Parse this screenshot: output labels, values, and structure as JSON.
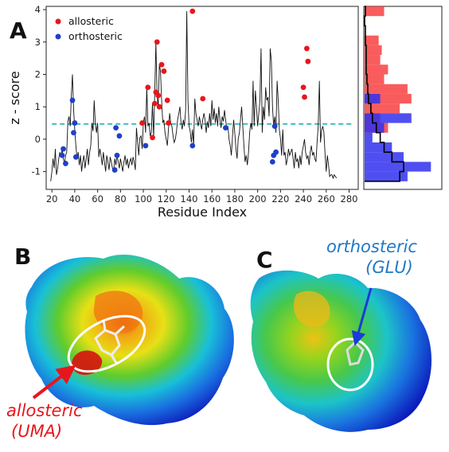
{
  "panels": {
    "a": "A",
    "b": "B",
    "c": "C"
  },
  "chart_data": {
    "type": "line",
    "xlabel": "Residue Index",
    "ylabel": "z - score",
    "xlim": [
      15,
      288
    ],
    "ylim": [
      -1.55,
      4.1
    ],
    "xticks": [
      20,
      40,
      60,
      80,
      100,
      120,
      140,
      160,
      180,
      200,
      220,
      240,
      260,
      280
    ],
    "yticks": [
      -1,
      0,
      1,
      2,
      3,
      4
    ],
    "threshold": 0.47,
    "line_x": [
      19,
      20,
      21,
      22,
      23,
      24,
      25,
      26,
      27,
      28,
      29,
      30,
      31,
      32,
      33,
      34,
      35,
      36,
      37,
      38,
      39,
      40,
      41,
      42,
      43,
      44,
      45,
      46,
      47,
      48,
      49,
      50,
      51,
      52,
      53,
      54,
      55,
      56,
      57,
      58,
      59,
      60,
      61,
      62,
      63,
      64,
      65,
      66,
      67,
      68,
      69,
      70,
      71,
      72,
      73,
      74,
      75,
      76,
      77,
      78,
      79,
      80,
      81,
      82,
      83,
      84,
      85,
      86,
      87,
      88,
      89,
      90,
      91,
      92,
      93,
      94,
      95,
      96,
      97,
      98,
      99,
      100,
      101,
      102,
      103,
      104,
      105,
      106,
      107,
      108,
      109,
      110,
      111,
      112,
      113,
      114,
      115,
      116,
      117,
      118,
      119,
      120,
      121,
      122,
      123,
      124,
      125,
      126,
      127,
      128,
      129,
      130,
      131,
      132,
      133,
      134,
      135,
      136,
      137,
      138,
      139,
      140,
      141,
      142,
      143,
      144,
      145,
      146,
      147,
      148,
      149,
      150,
      151,
      152,
      153,
      154,
      155,
      156,
      157,
      158,
      159,
      160,
      161,
      162,
      163,
      164,
      165,
      166,
      167,
      168,
      169,
      170,
      171,
      172,
      173,
      174,
      175,
      176,
      177,
      178,
      179,
      180,
      181,
      182,
      183,
      184,
      185,
      186,
      187,
      188,
      189,
      190,
      191,
      192,
      193,
      194,
      195,
      196,
      197,
      198,
      199,
      200,
      201,
      202,
      203,
      204,
      205,
      206,
      207,
      208,
      209,
      210,
      211,
      212,
      213,
      214,
      215,
      216,
      217,
      218,
      219,
      220,
      221,
      222,
      223,
      224,
      225,
      226,
      227,
      228,
      229,
      230,
      231,
      232,
      233,
      234,
      235,
      236,
      237,
      238,
      239,
      240,
      241,
      242,
      243,
      244,
      245,
      246,
      247,
      248,
      249,
      250,
      251,
      252,
      253,
      254,
      255,
      256,
      257,
      258,
      259,
      260,
      261,
      262,
      263,
      264,
      265,
      266,
      267,
      268,
      269,
      270,
      271,
      272,
      273,
      274,
      275,
      276,
      277,
      278,
      279,
      280,
      281,
      282,
      283,
      284,
      285
    ],
    "line_y": [
      -1.3,
      -1.0,
      -0.6,
      -0.9,
      -0.3,
      -1.1,
      -0.9,
      -0.6,
      -0.4,
      -0.55,
      -0.3,
      -0.6,
      -0.75,
      -0.5,
      -0.4,
      0.55,
      0.7,
      0.4,
      1.35,
      2.0,
      0.9,
      0.3,
      -0.2,
      -0.6,
      -0.4,
      -0.8,
      -0.5,
      -1.0,
      -0.7,
      -0.5,
      -0.9,
      -0.6,
      -0.3,
      -0.8,
      -0.4,
      -0.2,
      0.5,
      0.25,
      1.2,
      0.5,
      0.2,
      0.5,
      -0.55,
      -0.3,
      -0.5,
      -0.8,
      -0.4,
      -0.7,
      -1.0,
      -0.5,
      -0.7,
      -0.95,
      -0.55,
      -0.7,
      -0.9,
      -1.0,
      -0.6,
      -0.8,
      -0.5,
      -0.7,
      -0.9,
      -0.6,
      -0.8,
      -1.0,
      -0.7,
      -0.5,
      -0.8,
      -0.6,
      -0.9,
      -0.7,
      -0.6,
      -0.8,
      -0.55,
      -0.7,
      -0.95,
      0.35,
      -0.1,
      -0.5,
      0.05,
      0.1,
      -0.3,
      0.5,
      0.7,
      0.2,
      1.6,
      0.4,
      0.5,
      0.1,
      0.2,
      1.1,
      0.05,
      1.45,
      3.0,
      1.35,
      1.0,
      2.3,
      2.1,
      1.2,
      0.5,
      0.6,
      0.2,
      0.0,
      -0.2,
      0.3,
      0.8,
      0.5,
      0.4,
      0.1,
      -0.1,
      0.0,
      0.25,
      0.6,
      0.8,
      1.0,
      0.5,
      0.3,
      0.6,
      0.4,
      0.9,
      3.95,
      1.2,
      0.4,
      0.25,
      -0.1,
      0.3,
      -0.2,
      1.25,
      0.8,
      0.6,
      0.4,
      0.7,
      0.5,
      0.3,
      0.6,
      0.8,
      0.6,
      0.2,
      0.55,
      0.35,
      0.8,
      0.4,
      1.2,
      0.6,
      0.95,
      0.5,
      0.8,
      0.4,
      1.0,
      0.6,
      0.35,
      0.7,
      0.55,
      0.9,
      0.6,
      0.3,
      0.4,
      0.0,
      -0.2,
      -0.5,
      0.1,
      0.6,
      0.2,
      -0.3,
      -0.6,
      0.0,
      0.2,
      0.6,
      1.0,
      0.4,
      -0.2,
      -0.7,
      -0.5,
      -0.8,
      -0.4,
      0.2,
      0.5,
      0.3,
      1.8,
      0.4,
      1.5,
      1.0,
      0.4,
      0.8,
      1.2,
      2.8,
      0.2,
      1.0,
      0.6,
      1.6,
      1.2,
      1.3,
      0.7,
      2.8,
      2.4,
      1.0,
      0.4,
      0.7,
      0.2,
      1.8,
      1.2,
      0.3,
      0.0,
      -0.5,
      0.3,
      -0.5,
      -0.4,
      -0.8,
      -0.6,
      -0.3,
      -0.5,
      -0.4,
      -0.3,
      -0.6,
      -0.9,
      -0.4,
      -0.7,
      -0.6,
      -0.9,
      -0.5,
      -0.8,
      -0.4,
      -0.2,
      0.0,
      -0.4,
      -0.6,
      -0.5,
      -0.8,
      -0.4,
      -0.2,
      -0.5,
      -0.4,
      -0.6,
      -0.7,
      -0.1,
      0.4,
      1.8,
      -0.1,
      0.3,
      0.4,
      0.2,
      -0.5,
      -1.0,
      -0.5,
      -0.8,
      -1.15,
      -1.1,
      -1.1,
      -1.2,
      -1.1,
      -1.15,
      -1.2
    ],
    "series": [
      {
        "name": "allosteric",
        "color": "#e8161c",
        "x": [
          99,
          104,
          108,
          110,
          111,
          112,
          113,
          114,
          116,
          118,
          121,
          122,
          143,
          152,
          240,
          241,
          243,
          244
        ],
        "y": [
          0.5,
          1.6,
          0.05,
          1.1,
          1.45,
          3.0,
          1.35,
          1.0,
          2.3,
          2.1,
          1.2,
          0.5,
          3.95,
          1.25,
          1.6,
          1.3,
          2.8,
          2.4
        ]
      },
      {
        "name": "orthosteric",
        "color": "#1f3fcc",
        "x": [
          29,
          30,
          32,
          38,
          39,
          40,
          41,
          75,
          76,
          77,
          79,
          102,
          143,
          172,
          213,
          214,
          215,
          216
        ],
        "y": [
          -0.5,
          -0.3,
          -0.75,
          1.2,
          0.2,
          0.5,
          -0.55,
          -0.95,
          0.35,
          -0.5,
          0.1,
          -0.2,
          -0.2,
          0.35,
          -0.7,
          -0.5,
          0.4,
          -0.4
        ]
      }
    ],
    "side_hist": {
      "bins": [
        -1.3,
        -1.0,
        -0.7,
        -0.4,
        -0.1,
        0.2,
        0.5,
        0.8,
        1.1,
        1.4,
        1.7,
        2.0,
        2.3,
        2.6,
        2.9,
        3.2,
        3.5,
        3.8,
        4.1
      ],
      "allosteric": [
        0,
        0,
        0,
        0,
        0,
        0.3,
        0.2,
        0.45,
        0.6,
        0.55,
        0.25,
        0.3,
        0.2,
        0.22,
        0.18,
        0,
        0,
        0.25
      ],
      "orthosteric": [
        0.55,
        0.85,
        0.5,
        0.35,
        0.1,
        0.25,
        0.6,
        0,
        0.2,
        0,
        0,
        0,
        0,
        0,
        0,
        0,
        0,
        0
      ],
      "all_outline": [
        0.45,
        0.5,
        0.35,
        0.25,
        0.2,
        0.15,
        0.1,
        0.08,
        0.05,
        0.04,
        0.03,
        0.02,
        0.02,
        0.02,
        0.01,
        0.01,
        0,
        0.01
      ]
    }
  },
  "labels": {
    "allosteric_line1": "allosteric",
    "allosteric_line2": "(UMA)",
    "orthosteric_line1": "orthosteric",
    "orthosteric_line2": "(GLU)"
  },
  "colors": {
    "threshold": "#21b3b3",
    "allosteric_fill": "#f84040",
    "orthosteric_fill": "#3030ee",
    "hist_outline": "#000000",
    "uma_pointer": "#e8161c",
    "glu_pointer": "#1a3bd8"
  }
}
